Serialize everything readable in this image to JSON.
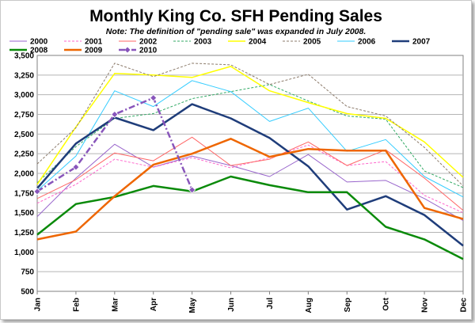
{
  "chart_data": {
    "type": "line",
    "title": "Monthly King Co. SFH Pending Sales",
    "subtitle": "Note: The definition of \"pending sale\" was expanded in July 2008.",
    "xlabel": "",
    "ylabel": "",
    "categories": [
      "Jan",
      "Feb",
      "Mar",
      "Apr",
      "May",
      "Jun",
      "Jul",
      "Aug",
      "Sep",
      "Oct",
      "Nov",
      "Dec"
    ],
    "ylim": [
      500,
      3500
    ],
    "yticks": [
      "500",
      "750",
      "1,000",
      "1,250",
      "1,500",
      "1,750",
      "2,000",
      "2,250",
      "2,500",
      "2,750",
      "3,000",
      "3,250",
      "3,500"
    ],
    "grid": true,
    "legend_position": "top",
    "series": [
      {
        "name": "2000",
        "color": "#9966cc",
        "dash": "solid",
        "width": 1,
        "marker": "none",
        "values": [
          1450,
          1940,
          2370,
          2080,
          2220,
          2100,
          1960,
          2240,
          1890,
          1910,
          1680,
          1400
        ]
      },
      {
        "name": "2001",
        "color": "#ff66cc",
        "dash": "dashed",
        "width": 1,
        "marker": "none",
        "values": [
          1620,
          1860,
          2180,
          2080,
          2200,
          2070,
          2200,
          2360,
          2100,
          2150,
          1720,
          1500
        ]
      },
      {
        "name": "2002",
        "color": "#ff6666",
        "dash": "solid",
        "width": 1,
        "marker": "none",
        "values": [
          1680,
          1920,
          2260,
          2160,
          2460,
          2100,
          2180,
          2400,
          2100,
          2300,
          1940,
          1530
        ]
      },
      {
        "name": "2003",
        "color": "#33aa66",
        "dash": "dashed",
        "width": 1,
        "marker": "none",
        "values": [
          1880,
          2340,
          2700,
          2760,
          2950,
          3040,
          3130,
          2920,
          2730,
          2690,
          2030,
          1820
        ]
      },
      {
        "name": "2004",
        "color": "#ffff00",
        "dash": "solid",
        "width": 1.5,
        "marker": "none",
        "values": [
          1860,
          2590,
          3270,
          3250,
          3220,
          3360,
          3050,
          2900,
          2760,
          2700,
          2400,
          1950
        ]
      },
      {
        "name": "2005",
        "color": "#8c7b6b",
        "dash": "dashed",
        "width": 1,
        "marker": "none",
        "values": [
          2120,
          2580,
          3400,
          3230,
          3400,
          3380,
          3130,
          3260,
          2850,
          2730,
          2330,
          1840
        ]
      },
      {
        "name": "2006",
        "color": "#33ccff",
        "dash": "solid",
        "width": 1,
        "marker": "none",
        "values": [
          1780,
          2220,
          3050,
          2850,
          3180,
          3040,
          2660,
          2830,
          2280,
          2430,
          1960,
          1700
        ]
      },
      {
        "name": "2007",
        "color": "#1f3d7a",
        "dash": "solid",
        "width": 2.5,
        "marker": "none",
        "values": [
          1810,
          2380,
          2710,
          2550,
          2880,
          2700,
          2450,
          2090,
          1540,
          1710,
          1470,
          1080
        ]
      },
      {
        "name": "2008",
        "color": "#0a8a0a",
        "dash": "solid",
        "width": 2.5,
        "marker": "none",
        "values": [
          1220,
          1610,
          1700,
          1840,
          1770,
          1960,
          1850,
          1760,
          1760,
          1320,
          1160,
          910
        ]
      },
      {
        "name": "2009",
        "color": "#ee6600",
        "dash": "solid",
        "width": 2.5,
        "marker": "none",
        "values": [
          1160,
          1260,
          1710,
          2110,
          2250,
          2440,
          2210,
          2310,
          2290,
          2290,
          1560,
          1420
        ]
      },
      {
        "name": "2010",
        "color": "#8855bb",
        "dash": "dashdot",
        "width": 2.5,
        "marker": "diamond",
        "values": [
          1770,
          2080,
          2750,
          2960,
          1790,
          null,
          null,
          null,
          null,
          null,
          null,
          null
        ]
      }
    ]
  }
}
